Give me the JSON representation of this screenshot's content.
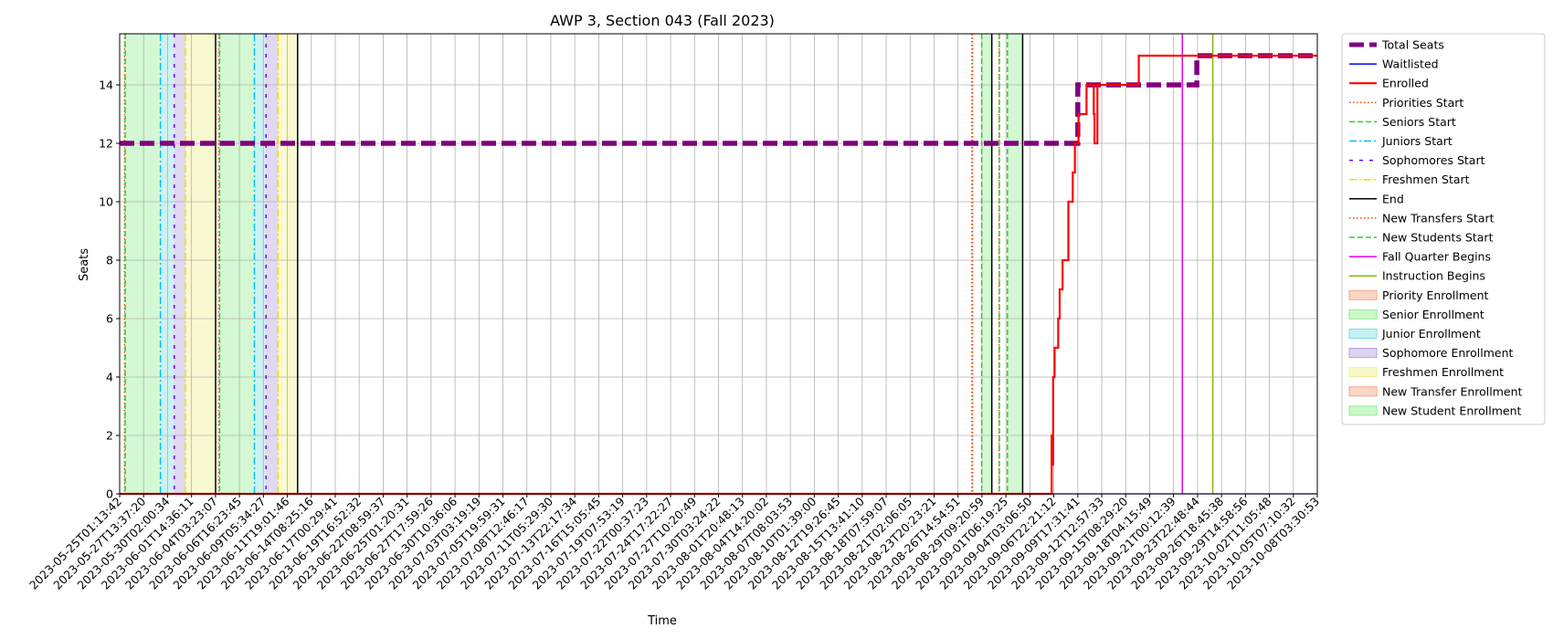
{
  "chart_data": {
    "type": "line",
    "title": "AWP 3, Section 043 (Fall 2023)",
    "xlabel": "Time",
    "ylabel": "Seats",
    "xlim": [
      "2023-05-24T11:40:00",
      "2023-10-09T00:00:00"
    ],
    "ylim": [
      0,
      15.75
    ],
    "grid": true,
    "legend_position": "outside-right",
    "y_ticks": [
      0,
      2,
      4,
      6,
      8,
      10,
      12,
      14
    ],
    "x_tick_labels": [
      "2023-05-25T01:13:42",
      "2023-05-27T13:37:20",
      "2023-05-30T02:00:34",
      "2023-06-01T14:36:11",
      "2023-06-04T03:23:07",
      "2023-06-06T16:23:45",
      "2023-06-09T05:34:27",
      "2023-06-11T19:01:46",
      "2023-06-14T08:25:16",
      "2023-06-17T00:29:41",
      "2023-06-19T16:52:32",
      "2023-06-22T08:59:37",
      "2023-06-25T01:20:31",
      "2023-06-27T17:59:26",
      "2023-06-30T10:36:06",
      "2023-07-03T03:19:19",
      "2023-07-05T19:59:31",
      "2023-07-08T12:46:17",
      "2023-07-11T05:29:30",
      "2023-07-13T22:17:34",
      "2023-07-16T15:05:45",
      "2023-07-19T07:53:19",
      "2023-07-22T00:37:23",
      "2023-07-24T17:22:27",
      "2023-07-27T10:20:49",
      "2023-07-30T03:24:22",
      "2023-08-01T20:48:13",
      "2023-08-04T14:20:02",
      "2023-08-07T08:03:53",
      "2023-08-10T01:39:00",
      "2023-08-12T19:26:45",
      "2023-08-15T13:41:10",
      "2023-08-18T07:59:07",
      "2023-08-21T02:06:05",
      "2023-08-23T20:23:21",
      "2023-08-26T14:54:51",
      "2023-08-29T09:20:59",
      "2023-09-01T06:19:25",
      "2023-09-04T03:06:50",
      "2023-09-06T22:21:12",
      "2023-09-09T17:31:41",
      "2023-09-12T12:57:33",
      "2023-09-15T08:29:20",
      "2023-09-18T04:15:49",
      "2023-09-21T00:12:39",
      "2023-09-23T22:48:44",
      "2023-09-26T18:45:38",
      "2023-09-29T14:58:56",
      "2023-10-02T11:05:48",
      "2023-10-05T07:10:32",
      "2023-10-08T03:30:53"
    ],
    "series": [
      {
        "name": "Total Seats",
        "color": "#800080",
        "style": "dashed-thick",
        "x": [
          "2023-05-24T11:40:00",
          "2023-09-11T12:00:00",
          "2023-09-11T12:00:00",
          "2023-09-25T04:00:00",
          "2023-09-25T04:00:00",
          "2023-10-09T00:00:00"
        ],
        "y": [
          12,
          12,
          14,
          14,
          15,
          15
        ]
      },
      {
        "name": "Waitlisted",
        "color": "#0000ff",
        "style": "solid",
        "x": [
          "2023-05-24T11:40:00",
          "2023-10-09T00:00:00"
        ],
        "y": [
          0,
          0
        ]
      },
      {
        "name": "Enrolled",
        "color": "#ff0000",
        "style": "steps-thick",
        "x": [
          "2023-05-24T11:40:00",
          "2023-09-08T12:00:00",
          "2023-09-08T14:00:00",
          "2023-09-08T16:00:00",
          "2023-09-08T20:00:00",
          "2023-09-09T06:00:00",
          "2023-09-09T10:00:00",
          "2023-09-09T18:00:00",
          "2023-09-10T10:00:00",
          "2023-09-10T22:00:00",
          "2023-09-11T04:00:00",
          "2023-09-11T14:00:00",
          "2023-09-12T12:00:00",
          "2023-09-13T08:00:00",
          "2023-09-13T10:00:00",
          "2023-09-13T18:00:00",
          "2023-09-15T12:00:00",
          "2023-09-18T00:00:00",
          "2023-09-18T12:00:00",
          "2023-09-25T08:00:00",
          "2023-10-09T00:00:00"
        ],
        "y": [
          0,
          2,
          1,
          4,
          5,
          6,
          7,
          8,
          10,
          11,
          12,
          13,
          14,
          13,
          12,
          14,
          14,
          14,
          15,
          15,
          15
        ]
      }
    ],
    "vertical_lines": [
      {
        "name": "Priorities Start",
        "color": "#ff4500",
        "style": "dotted",
        "x": [
          "2023-05-25T01:15:00",
          "2023-06-04T21:00:00",
          "2023-08-30T10:00:00",
          "2023-09-02T11:00:00"
        ]
      },
      {
        "name": "Seniors Start",
        "color": "#32cd32",
        "style": "dashed",
        "x": [
          "2023-05-25T03:00:00",
          "2023-06-04T23:00:00",
          "2023-08-31T11:00:00",
          "2023-09-02T12:00:00"
        ]
      },
      {
        "name": "Juniors Start",
        "color": "#00bfff",
        "style": "dashdot",
        "x": [
          "2023-05-29T04:00:00",
          "2023-06-08T23:00:00"
        ]
      },
      {
        "name": "Sophomores Start",
        "color": "#6a00ff",
        "style": "loosely-dashed",
        "x": [
          "2023-05-30T18:00:00",
          "2023-06-10T07:00:00"
        ]
      },
      {
        "name": "Freshmen Start",
        "color": "#e6e600",
        "style": "dashdot",
        "x": [
          "2023-06-01T01:00:00",
          "2023-06-11T16:00:00"
        ]
      },
      {
        "name": "End",
        "color": "#000000",
        "style": "solid",
        "x": [
          "2023-06-04T12:00:00",
          "2023-06-13T22:00:00",
          "2023-09-01T15:00:00",
          "2023-09-05T04:00:00"
        ]
      },
      {
        "name": "New Transfers Start",
        "color": "#ff4500",
        "style": "dotted",
        "x": [
          "2023-08-30T08:00:00"
        ]
      },
      {
        "name": "New Students Start",
        "color": "#32cd32",
        "style": "dashed",
        "x": [
          "2023-09-03T10:00:00"
        ]
      },
      {
        "name": "Fall Quarter Begins",
        "color": "#e600e6",
        "style": "solid",
        "x": [
          "2023-09-23T12:00:00"
        ]
      },
      {
        "name": "Instruction Begins",
        "color": "#7fbf00",
        "style": "solid",
        "x": [
          "2023-09-27T00:00:00"
        ]
      }
    ],
    "shaded_periods": [
      {
        "name": "Priority Enrollment",
        "color": "#f4a582",
        "opacity": 0.4,
        "ranges": []
      },
      {
        "name": "Senior Enrollment",
        "color": "#90ee90",
        "opacity": 0.4,
        "ranges": [
          [
            "2023-05-25T03:00:00",
            "2023-05-29T04:00:00"
          ],
          [
            "2023-06-04T23:00:00",
            "2023-06-08T23:00:00"
          ],
          [
            "2023-08-31T11:00:00",
            "2023-09-01T15:00:00"
          ]
        ]
      },
      {
        "name": "Junior Enrollment",
        "color": "#7fdfdf",
        "opacity": 0.4,
        "ranges": [
          [
            "2023-05-29T04:00:00",
            "2023-05-30T18:00:00"
          ],
          [
            "2023-06-08T23:00:00",
            "2023-06-10T07:00:00"
          ]
        ]
      },
      {
        "name": "Sophomore Enrollment",
        "color": "#b39ddb",
        "opacity": 0.4,
        "ranges": [
          [
            "2023-05-30T18:00:00",
            "2023-06-01T01:00:00"
          ],
          [
            "2023-06-10T07:00:00",
            "2023-06-11T16:00:00"
          ]
        ]
      },
      {
        "name": "Freshmen Enrollment",
        "color": "#f0f08c",
        "opacity": 0.4,
        "ranges": [
          [
            "2023-06-01T01:00:00",
            "2023-06-04T12:00:00"
          ],
          [
            "2023-06-11T16:00:00",
            "2023-06-13T22:00:00"
          ]
        ]
      },
      {
        "name": "New Transfer Enrollment",
        "color": "#f4a582",
        "opacity": 0.4,
        "ranges": []
      },
      {
        "name": "New Student Enrollment",
        "color": "#90ee90",
        "opacity": 0.4,
        "ranges": [
          [
            "2023-09-03T10:00:00",
            "2023-09-05T04:00:00"
          ]
        ]
      }
    ],
    "legend": [
      {
        "label": "Total Seats",
        "kind": "line",
        "color": "#800080",
        "style": "dashed-thick"
      },
      {
        "label": "Waitlisted",
        "kind": "line",
        "color": "#0000ff",
        "style": "solid"
      },
      {
        "label": "Enrolled",
        "kind": "line",
        "color": "#ff0000",
        "style": "solid-thick"
      },
      {
        "label": "Priorities Start",
        "kind": "line",
        "color": "#ff4500",
        "style": "dotted"
      },
      {
        "label": "Seniors Start",
        "kind": "line",
        "color": "#32cd32",
        "style": "dashed"
      },
      {
        "label": "Juniors Start",
        "kind": "line",
        "color": "#00bfff",
        "style": "dashdot"
      },
      {
        "label": "Sophomores Start",
        "kind": "line",
        "color": "#6a00ff",
        "style": "loosely-dashed"
      },
      {
        "label": "Freshmen Start",
        "kind": "line",
        "color": "#e6e600",
        "style": "dashdot"
      },
      {
        "label": "End",
        "kind": "line",
        "color": "#000000",
        "style": "solid"
      },
      {
        "label": "New Transfers Start",
        "kind": "line",
        "color": "#ff4500",
        "style": "dotted"
      },
      {
        "label": "New Students Start",
        "kind": "line",
        "color": "#32cd32",
        "style": "dashed"
      },
      {
        "label": "Fall Quarter Begins",
        "kind": "line",
        "color": "#e600e6",
        "style": "solid"
      },
      {
        "label": "Instruction Begins",
        "kind": "line",
        "color": "#7fbf00",
        "style": "solid"
      },
      {
        "label": "Priority Enrollment",
        "kind": "patch",
        "color": "#f4a582"
      },
      {
        "label": "Senior Enrollment",
        "kind": "patch",
        "color": "#90ee90"
      },
      {
        "label": "Junior Enrollment",
        "kind": "patch",
        "color": "#7fdfdf"
      },
      {
        "label": "Sophomore Enrollment",
        "kind": "patch",
        "color": "#b39ddb"
      },
      {
        "label": "Freshmen Enrollment",
        "kind": "patch",
        "color": "#f0f08c"
      },
      {
        "label": "New Transfer Enrollment",
        "kind": "patch",
        "color": "#f4a582"
      },
      {
        "label": "New Student Enrollment",
        "kind": "patch",
        "color": "#90ee90"
      }
    ]
  }
}
